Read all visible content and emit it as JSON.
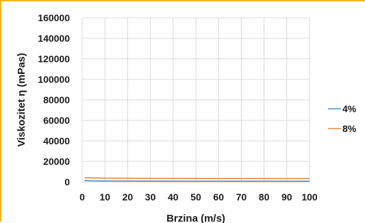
{
  "chart_data": {
    "type": "line",
    "title": "",
    "xlabel": "Brzina (m/s)",
    "ylabel": "Viskozitet η (mPas)",
    "xlim": [
      0,
      100
    ],
    "ylim": [
      0,
      160000
    ],
    "x_ticks": [
      "0",
      "10",
      "20",
      "30",
      "40",
      "50",
      "60",
      "70",
      "80",
      "90",
      "100"
    ],
    "y_ticks": [
      "0",
      "20000",
      "40000",
      "60000",
      "80000",
      "100000",
      "120000",
      "140000",
      "160000"
    ],
    "grid": true,
    "legend_position": "right",
    "series": [
      {
        "name": "4%",
        "color": "#4f88c6",
        "x": [
          1,
          2,
          5,
          10,
          20,
          30,
          40,
          50,
          60,
          70,
          80,
          90,
          100
        ],
        "y": [
          1500,
          1200,
          1000,
          900,
          850,
          800,
          780,
          760,
          750,
          740,
          730,
          720,
          710
        ]
      },
      {
        "name": "8%",
        "color": "#e3893b",
        "x": [
          1,
          2,
          5,
          10,
          20,
          30,
          40,
          50,
          60,
          70,
          80,
          90,
          100
        ],
        "y": [
          4200,
          4000,
          3900,
          3700,
          3600,
          3550,
          3500,
          3450,
          3420,
          3400,
          3380,
          3350,
          3300
        ]
      }
    ]
  }
}
